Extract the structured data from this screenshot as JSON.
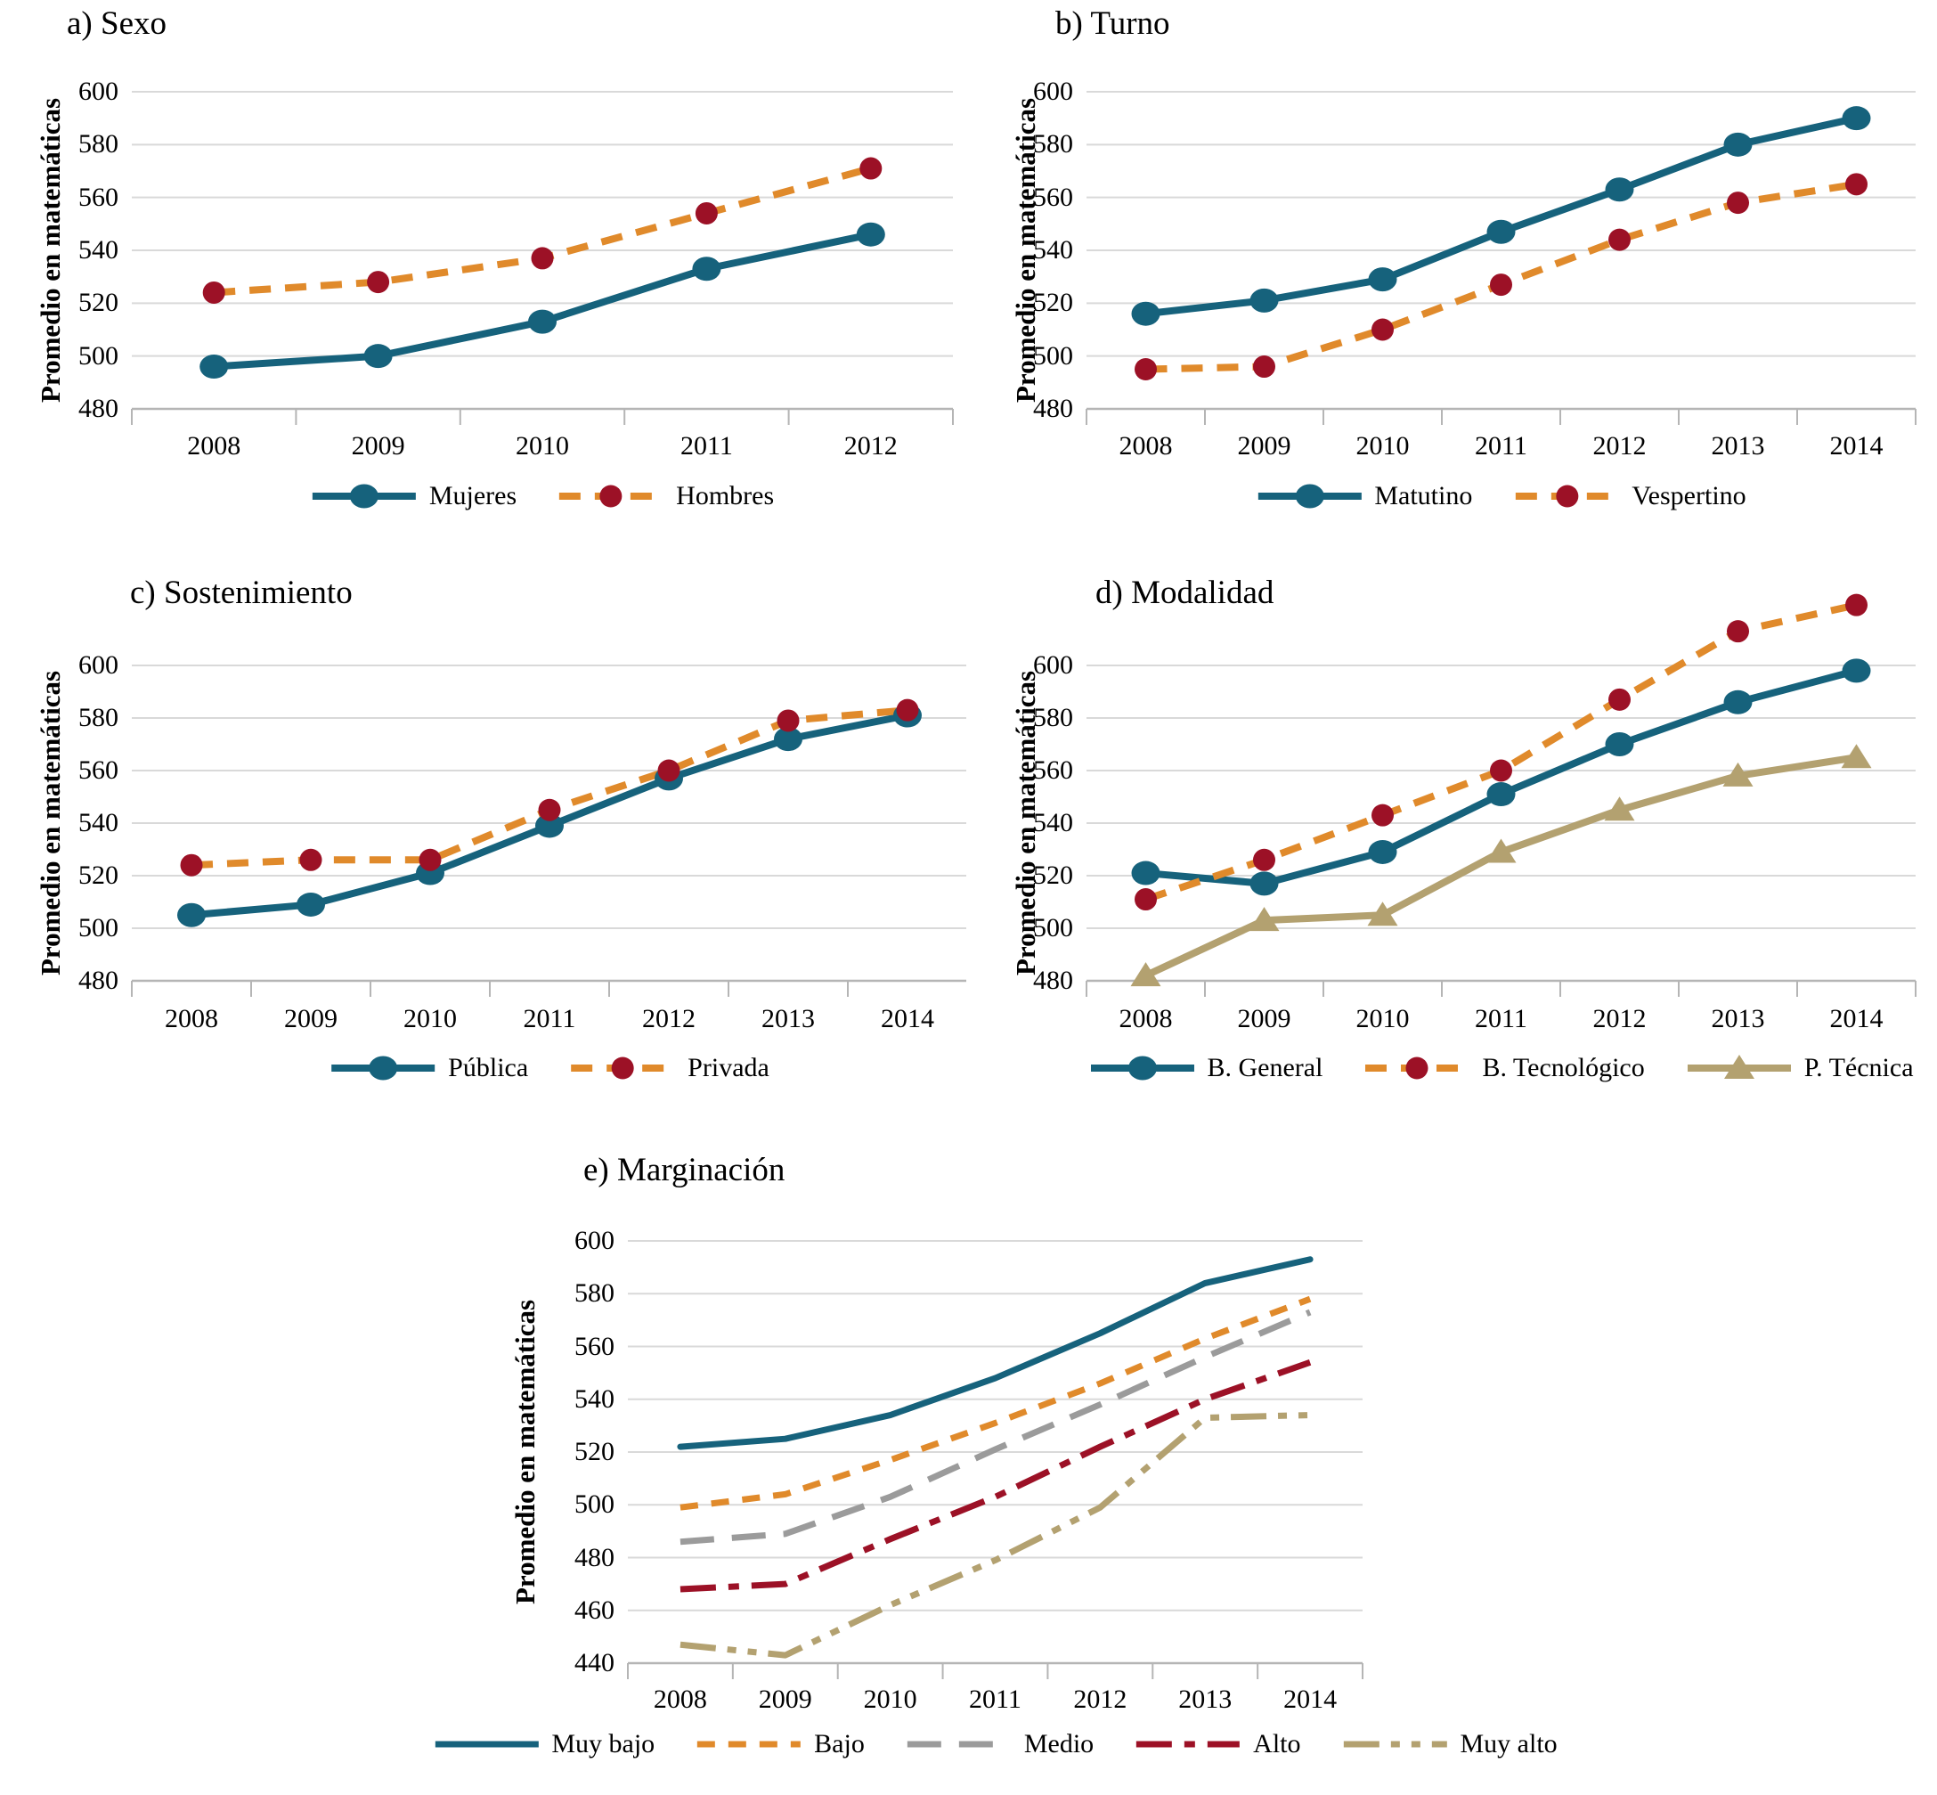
{
  "colors": {
    "teal": "#16627C",
    "orange": "#E08A2B",
    "red": "#9C1126",
    "tan": "#B3A170",
    "gray": "#9B9B9B",
    "grid": "#D9D9D9",
    "axis": "#B5B5B5",
    "text": "#000000"
  },
  "chart_data": [
    {
      "id": "a",
      "type": "line",
      "title": "a) Sexo",
      "ylabel": "Promedio en matemáticas",
      "categories": [
        "2008",
        "2009",
        "2010",
        "2011",
        "2012"
      ],
      "yticks": [
        600,
        580,
        560,
        540,
        520,
        500,
        480
      ],
      "ylim": [
        480,
        600
      ],
      "grid": true,
      "legend_position": "bottom",
      "series": [
        {
          "name": "Mujeres",
          "color": "teal",
          "dash": "solid",
          "marker": "ellipse",
          "marker_color": "teal",
          "values": [
            496,
            500,
            513,
            533,
            546
          ]
        },
        {
          "name": "Hombres",
          "color": "orange",
          "dash": "dashed",
          "marker": "circle",
          "marker_color": "red",
          "values": [
            524,
            528,
            537,
            554,
            571
          ]
        }
      ]
    },
    {
      "id": "b",
      "type": "line",
      "title": "b) Turno",
      "ylabel": "Promedio en matemáticas",
      "categories": [
        "2008",
        "2009",
        "2010",
        "2011",
        "2012",
        "2013",
        "2014"
      ],
      "yticks": [
        600,
        580,
        560,
        540,
        520,
        500,
        480
      ],
      "ylim": [
        480,
        600
      ],
      "grid": true,
      "legend_position": "bottom",
      "series": [
        {
          "name": "Matutino",
          "color": "teal",
          "dash": "solid",
          "marker": "ellipse",
          "marker_color": "teal",
          "values": [
            516,
            521,
            529,
            547,
            563,
            580,
            590
          ]
        },
        {
          "name": "Vespertino",
          "color": "orange",
          "dash": "dashed",
          "marker": "circle",
          "marker_color": "red",
          "values": [
            495,
            496,
            510,
            527,
            544,
            558,
            565
          ]
        }
      ]
    },
    {
      "id": "c",
      "type": "line",
      "title": "c) Sostenimiento",
      "ylabel": "Promedio en matemáticas",
      "categories": [
        "2008",
        "2009",
        "2010",
        "2011",
        "2012",
        "2013",
        "2014"
      ],
      "yticks": [
        600,
        580,
        560,
        540,
        520,
        500,
        480
      ],
      "ylim": [
        480,
        600
      ],
      "grid": true,
      "legend_position": "bottom",
      "series": [
        {
          "name": "Pública",
          "color": "teal",
          "dash": "solid",
          "marker": "ellipse",
          "marker_color": "teal",
          "values": [
            505,
            509,
            521,
            539,
            557,
            572,
            581
          ]
        },
        {
          "name": "Privada",
          "color": "orange",
          "dash": "dashed",
          "marker": "circle",
          "marker_color": "red",
          "values": [
            524,
            526,
            526,
            545,
            560,
            579,
            583
          ]
        }
      ]
    },
    {
      "id": "d",
      "type": "line",
      "title": "d) Modalidad",
      "ylabel": "Promedio en matemáticas",
      "categories": [
        "2008",
        "2009",
        "2010",
        "2011",
        "2012",
        "2013",
        "2014"
      ],
      "yticks": [
        600,
        580,
        560,
        540,
        520,
        500,
        480
      ],
      "ylim": [
        480,
        600
      ],
      "grid": true,
      "legend_position": "bottom",
      "series": [
        {
          "name": "B. General",
          "color": "teal",
          "dash": "solid",
          "marker": "ellipse",
          "marker_color": "teal",
          "values": [
            521,
            517,
            529,
            551,
            570,
            586,
            598
          ]
        },
        {
          "name": "B. Tecnológico",
          "color": "orange",
          "dash": "dashed",
          "marker": "circle",
          "marker_color": "red",
          "values": [
            511,
            526,
            543,
            560,
            587,
            613,
            623
          ]
        },
        {
          "name": "P. Técnica",
          "color": "tan",
          "dash": "solid",
          "marker": "triangle",
          "marker_color": "tan",
          "values": [
            482,
            503,
            505,
            529,
            545,
            558,
            565
          ]
        }
      ]
    },
    {
      "id": "e",
      "type": "line",
      "title": "e) Marginación",
      "ylabel": "Promedio en matemáticas",
      "categories": [
        "2008",
        "2009",
        "2010",
        "2011",
        "2012",
        "2013",
        "2014"
      ],
      "yticks": [
        600,
        580,
        560,
        540,
        520,
        500,
        480,
        460,
        440
      ],
      "ylim": [
        440,
        600
      ],
      "grid": true,
      "legend_position": "bottom",
      "series": [
        {
          "name": "Muy bajo",
          "color": "teal",
          "dash": "solid",
          "marker": "none",
          "values": [
            522,
            525,
            534,
            548,
            565,
            584,
            593
          ]
        },
        {
          "name": "Bajo",
          "color": "orange",
          "dash": "dashed-short",
          "marker": "none",
          "values": [
            499,
            504,
            517,
            531,
            546,
            563,
            578
          ]
        },
        {
          "name": "Medio",
          "color": "gray",
          "dash": "dash-long",
          "marker": "none",
          "values": [
            486,
            489,
            503,
            521,
            538,
            556,
            573
          ]
        },
        {
          "name": "Alto",
          "color": "red",
          "dash": "dash-dot",
          "marker": "none",
          "values": [
            468,
            470,
            487,
            503,
            522,
            540,
            554
          ]
        },
        {
          "name": "Muy alto",
          "color": "tan",
          "dash": "dash-dot-dot",
          "marker": "none",
          "values": [
            447,
            443,
            462,
            479,
            499,
            533,
            534
          ]
        }
      ]
    }
  ]
}
